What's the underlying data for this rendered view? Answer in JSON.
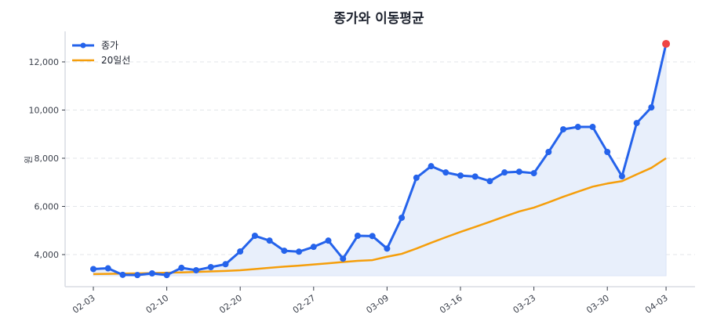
{
  "chart_data": {
    "type": "line",
    "title": "종가와 이동평균",
    "xlabel": "",
    "ylabel": "원",
    "ylim": [
      2700,
      13300
    ],
    "yticks": [
      4000,
      6000,
      8000,
      10000,
      12000
    ],
    "ytick_labels": [
      "4,000",
      "6,000",
      "8,000",
      "10,000",
      "12,000"
    ],
    "xticks": [
      0,
      5,
      10,
      15,
      20,
      25,
      30,
      35,
      39
    ],
    "xtick_labels": [
      "02-03",
      "02-10",
      "02-20",
      "02-27",
      "03-09",
      "03-16",
      "03-23",
      "03-30",
      "04-03"
    ],
    "grid": true,
    "legend_position": "upper left",
    "x": [
      0,
      1,
      2,
      3,
      4,
      5,
      6,
      7,
      8,
      9,
      10,
      11,
      12,
      13,
      14,
      15,
      16,
      17,
      18,
      19,
      20,
      21,
      22,
      23,
      24,
      25,
      26,
      27,
      28,
      29,
      30,
      31,
      32,
      33,
      34,
      35,
      36,
      37,
      38,
      39
    ],
    "series": [
      {
        "name": "종가",
        "color": "#2563eb",
        "marker": "circle",
        "fill": "#e8effb",
        "last_point_color": "#ef4444",
        "values": [
          3400,
          3430,
          3160,
          3150,
          3220,
          3150,
          3450,
          3350,
          3480,
          3600,
          4130,
          4780,
          4580,
          4160,
          4120,
          4320,
          4580,
          3830,
          4780,
          4770,
          4250,
          5530,
          7190,
          7670,
          7410,
          7280,
          7240,
          7050,
          7410,
          7440,
          7380,
          8260,
          9200,
          9300,
          9300,
          8260,
          7250,
          9460,
          10110,
          12750
        ]
      },
      {
        "name": "20일선",
        "color": "#f59e0b",
        "marker": "none",
        "values": [
          3190,
          3200,
          3210,
          3220,
          3230,
          3250,
          3260,
          3280,
          3300,
          3320,
          3350,
          3400,
          3450,
          3500,
          3540,
          3590,
          3640,
          3690,
          3740,
          3770,
          3910,
          4030,
          4250,
          4490,
          4720,
          4940,
          5150,
          5360,
          5580,
          5790,
          5950,
          6170,
          6400,
          6610,
          6820,
          6950,
          7050,
          7330,
          7600,
          8000
        ]
      }
    ]
  }
}
